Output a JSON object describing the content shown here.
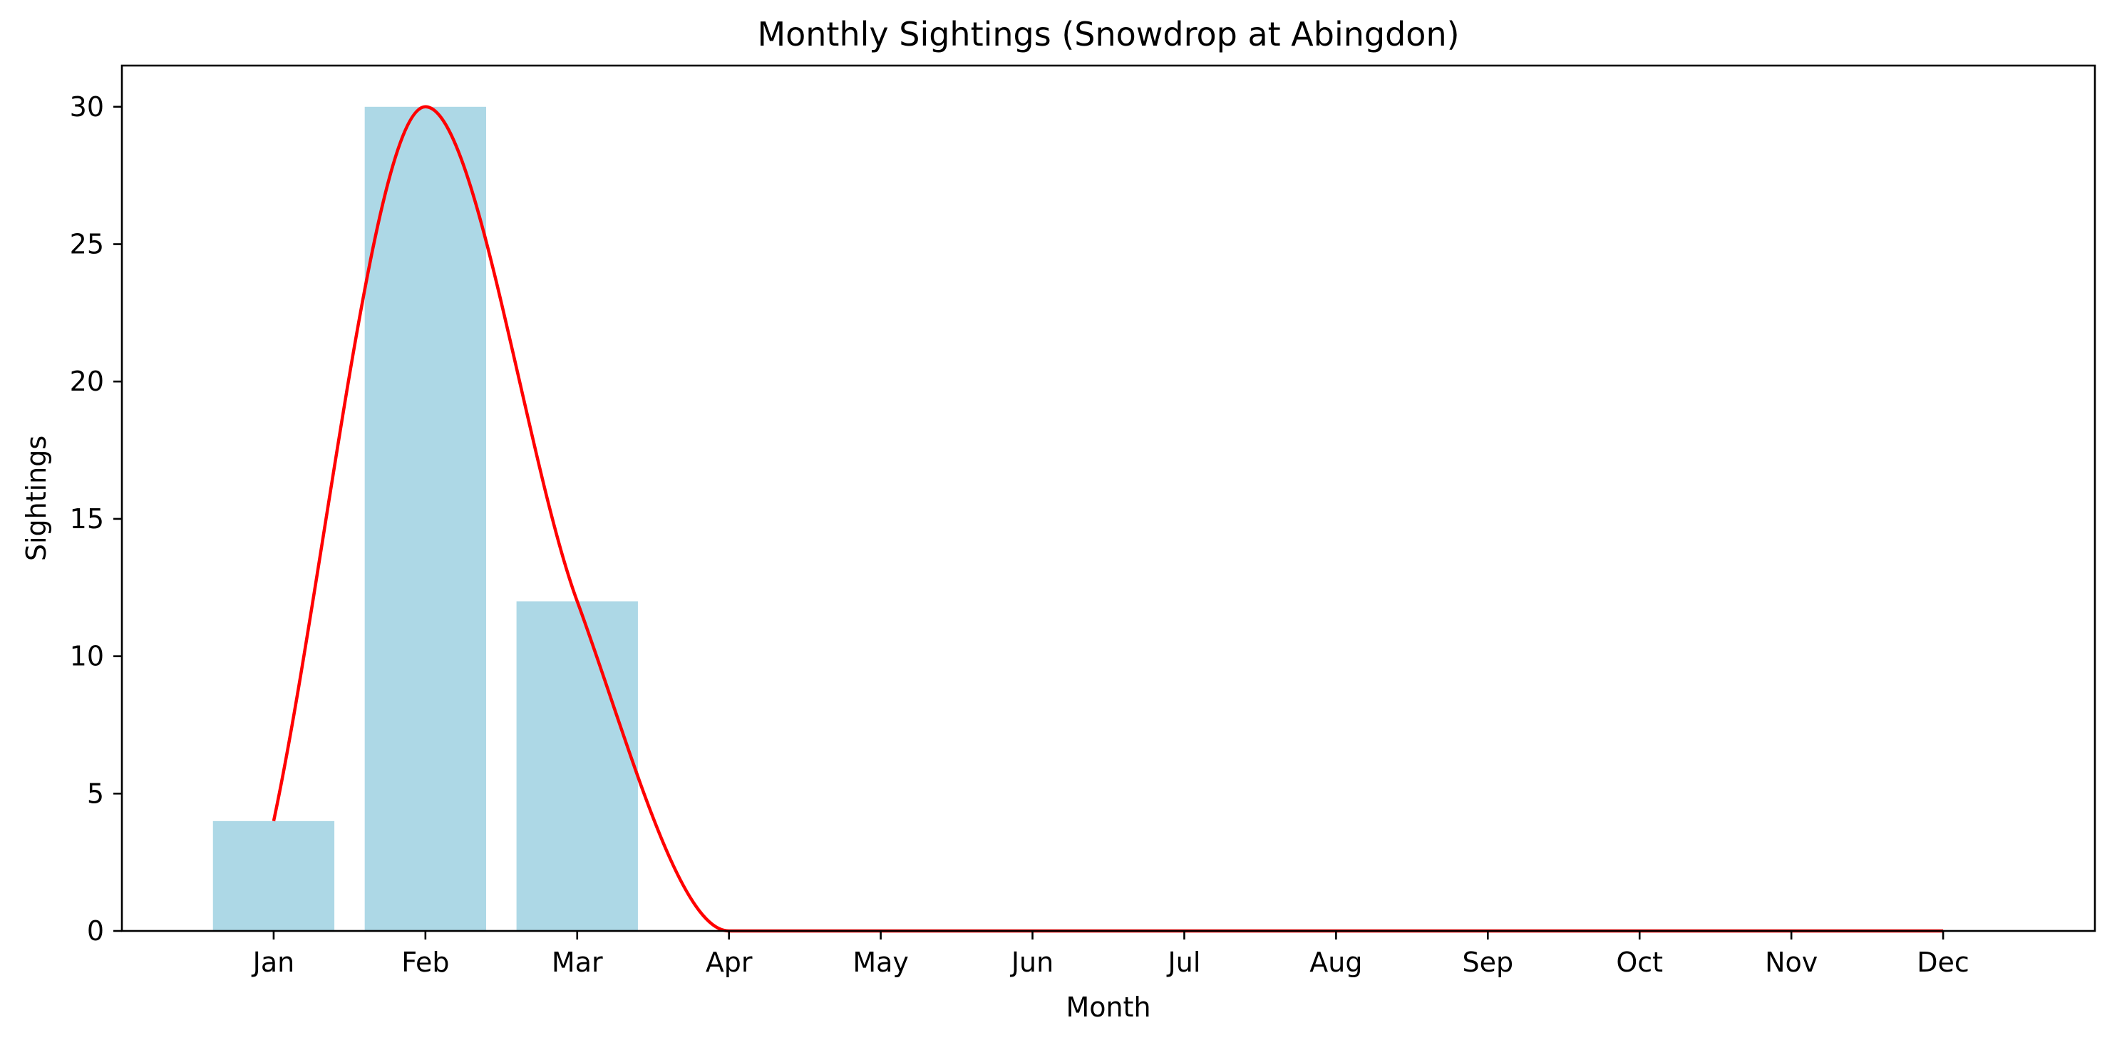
{
  "chart_data": {
    "type": "bar",
    "title": "Monthly Sightings (Snowdrop at Abingdon)",
    "xlabel": "Month",
    "ylabel": "Sightings",
    "categories": [
      "Jan",
      "Feb",
      "Mar",
      "Apr",
      "May",
      "Jun",
      "Jul",
      "Aug",
      "Sep",
      "Oct",
      "Nov",
      "Dec"
    ],
    "values": [
      4,
      30,
      12,
      0,
      0,
      0,
      0,
      0,
      0,
      0,
      0,
      0
    ],
    "ylim": [
      0,
      31.5
    ],
    "yticks": [
      0,
      5,
      10,
      15,
      20,
      25,
      30
    ],
    "grid": false,
    "legend": "none",
    "bar_color": "#add8e6",
    "overlay_line": {
      "type": "smooth-line",
      "color": "#ff0000"
    }
  }
}
